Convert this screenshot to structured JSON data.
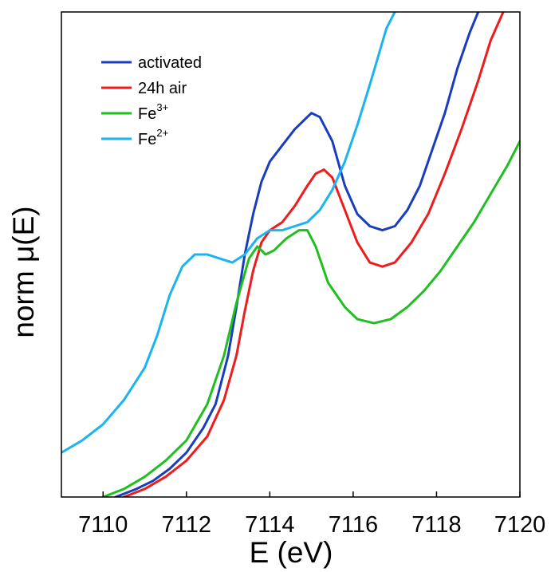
{
  "chart_data": {
    "type": "line",
    "xlabel": "E (eV)",
    "ylabel_prefix": "norm ",
    "ylabel_symbol": "μ",
    "ylabel_suffix": "(E)",
    "xlim": [
      7109,
      7120
    ],
    "ylim": [
      0,
      1.2
    ],
    "xticks": [
      7110,
      7112,
      7114,
      7116,
      7118,
      7120
    ],
    "grid": false,
    "legend_position": "top-left",
    "series": [
      {
        "name": "activated",
        "legend_base": "activated",
        "legend_sup": "",
        "color": "#1a3dbf",
        "x": [
          7110.3,
          7110.8,
          7111.2,
          7111.6,
          7112.0,
          7112.4,
          7112.7,
          7113.0,
          7113.2,
          7113.4,
          7113.6,
          7113.8,
          7114.0,
          7114.3,
          7114.6,
          7114.9,
          7115.0,
          7115.2,
          7115.5,
          7115.8,
          7116.1,
          7116.4,
          7116.7,
          7117.0,
          7117.3,
          7117.6,
          7117.9,
          7118.2,
          7118.5,
          7118.8,
          7119.0
        ],
        "y": [
          0.0,
          0.02,
          0.04,
          0.07,
          0.11,
          0.17,
          0.23,
          0.35,
          0.47,
          0.6,
          0.7,
          0.78,
          0.83,
          0.87,
          0.91,
          0.94,
          0.95,
          0.94,
          0.88,
          0.77,
          0.7,
          0.67,
          0.66,
          0.67,
          0.71,
          0.77,
          0.86,
          0.95,
          1.06,
          1.15,
          1.2
        ]
      },
      {
        "name": "24h air",
        "legend_base": "24h air",
        "legend_sup": "",
        "color": "#ee1c1c",
        "x": [
          7110.5,
          7111.0,
          7111.5,
          7112.0,
          7112.5,
          7112.9,
          7113.2,
          7113.4,
          7113.6,
          7113.8,
          7114.0,
          7114.3,
          7114.6,
          7114.9,
          7115.1,
          7115.3,
          7115.5,
          7115.8,
          7116.1,
          7116.4,
          7116.7,
          7117.0,
          7117.4,
          7117.8,
          7118.2,
          7118.6,
          7119.0,
          7119.3,
          7119.6
        ],
        "y": [
          0.0,
          0.02,
          0.05,
          0.09,
          0.15,
          0.24,
          0.35,
          0.46,
          0.56,
          0.63,
          0.66,
          0.68,
          0.72,
          0.77,
          0.8,
          0.81,
          0.79,
          0.71,
          0.63,
          0.58,
          0.57,
          0.58,
          0.63,
          0.7,
          0.8,
          0.91,
          1.03,
          1.13,
          1.2
        ]
      },
      {
        "name": "Fe3+",
        "legend_base": "Fe",
        "legend_sup": "3+",
        "color": "#1fbf1f",
        "x": [
          7110.0,
          7110.5,
          7111.0,
          7111.5,
          7112.0,
          7112.5,
          7112.9,
          7113.2,
          7113.5,
          7113.7,
          7113.9,
          7114.1,
          7114.4,
          7114.7,
          7114.9,
          7115.1,
          7115.4,
          7115.8,
          7116.1,
          7116.5,
          7116.9,
          7117.3,
          7117.7,
          7118.1,
          7118.5,
          7118.9,
          7119.3,
          7119.7,
          7120.0
        ],
        "y": [
          0.0,
          0.02,
          0.05,
          0.09,
          0.14,
          0.23,
          0.35,
          0.48,
          0.59,
          0.62,
          0.6,
          0.61,
          0.64,
          0.66,
          0.66,
          0.62,
          0.53,
          0.47,
          0.44,
          0.43,
          0.44,
          0.47,
          0.51,
          0.56,
          0.62,
          0.68,
          0.75,
          0.82,
          0.88
        ]
      },
      {
        "name": "Fe2+",
        "legend_base": "Fe",
        "legend_sup": "2+",
        "color": "#1ab4f0",
        "x": [
          7109.0,
          7109.5,
          7110.0,
          7110.5,
          7111.0,
          7111.3,
          7111.6,
          7111.9,
          7112.2,
          7112.5,
          7112.8,
          7113.1,
          7113.4,
          7113.7,
          7114.0,
          7114.3,
          7114.6,
          7114.9,
          7115.2,
          7115.5,
          7115.8,
          7116.1,
          7116.4,
          7116.6,
          7116.8,
          7117.0
        ],
        "y": [
          0.11,
          0.14,
          0.18,
          0.24,
          0.32,
          0.4,
          0.5,
          0.57,
          0.6,
          0.6,
          0.59,
          0.58,
          0.6,
          0.64,
          0.66,
          0.66,
          0.67,
          0.68,
          0.71,
          0.76,
          0.83,
          0.92,
          1.02,
          1.09,
          1.16,
          1.2
        ]
      }
    ]
  }
}
